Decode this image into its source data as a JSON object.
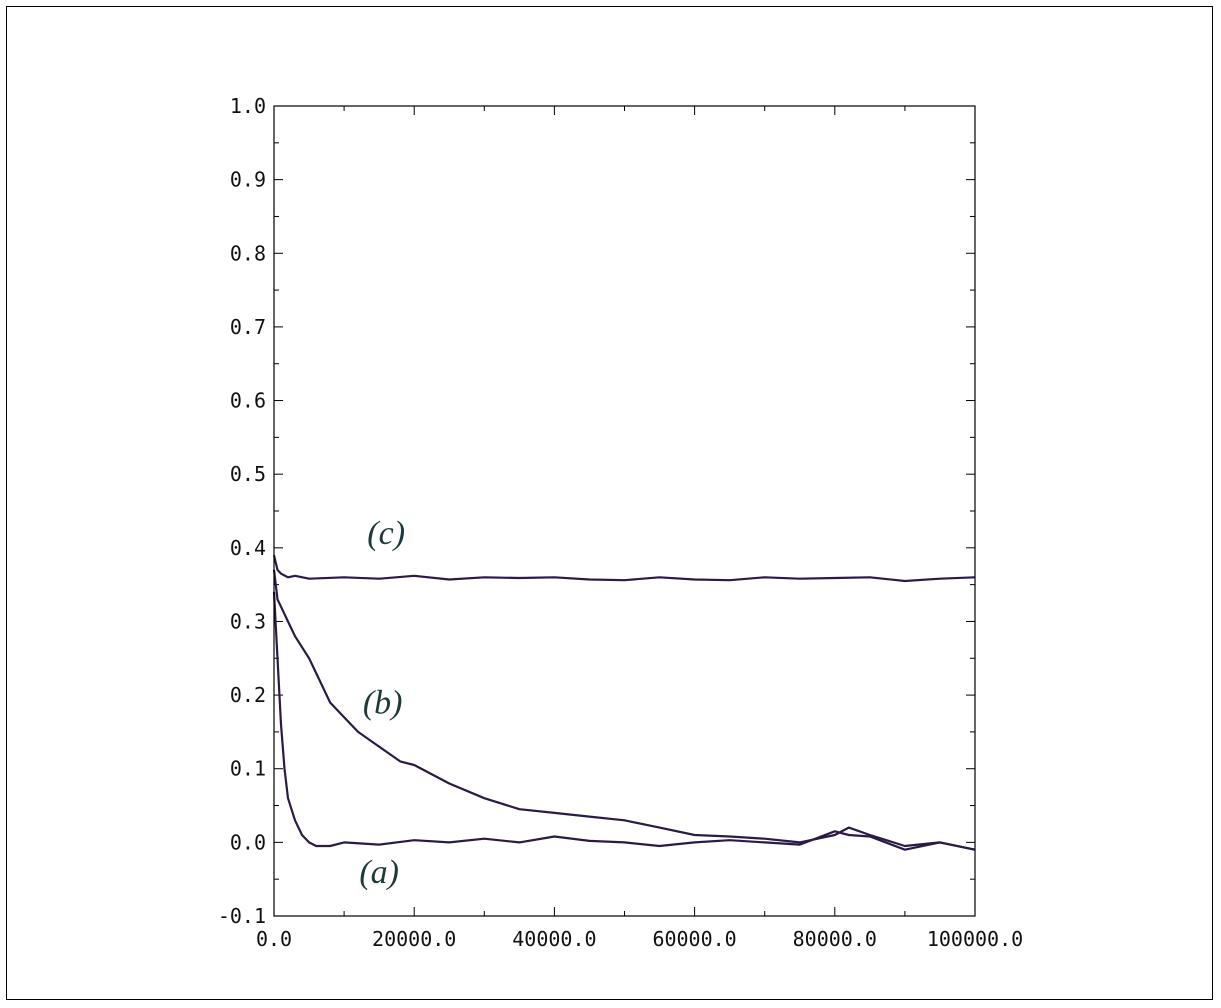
{
  "chart_data": {
    "type": "line",
    "title": "",
    "xlabel": "",
    "ylabel": "",
    "xlim": [
      0,
      100000
    ],
    "ylim": [
      -0.1,
      1.0
    ],
    "grid": false,
    "legend": "none",
    "x_ticks": [
      0,
      20000,
      40000,
      60000,
      80000,
      100000
    ],
    "x_tick_labels": [
      "0.0",
      "20000.0",
      "40000.0",
      "60000.0",
      "80000.0",
      "100000.0"
    ],
    "y_ticks": [
      -0.1,
      0.0,
      0.1,
      0.2,
      0.3,
      0.4,
      0.5,
      0.6,
      0.7,
      0.8,
      0.9,
      1.0
    ],
    "y_tick_labels": [
      "-0.1",
      "0.0",
      "0.1",
      "0.2",
      "0.3",
      "0.4",
      "0.5",
      "0.6",
      "0.7",
      "0.8",
      "0.9",
      "1.0"
    ],
    "line_color": "#2a1a45",
    "label_color": "#1d3a3a",
    "series": [
      {
        "name": "(a)",
        "x": [
          0,
          500,
          1000,
          1500,
          2000,
          3000,
          4000,
          5000,
          6000,
          8000,
          10000,
          15000,
          20000,
          25000,
          30000,
          35000,
          40000,
          45000,
          50000,
          55000,
          60000,
          65000,
          70000,
          75000,
          80000,
          82000,
          85000,
          90000,
          95000,
          100000
        ],
        "y": [
          0.34,
          0.25,
          0.16,
          0.1,
          0.06,
          0.03,
          0.01,
          0.0,
          -0.005,
          -0.005,
          0.0,
          -0.003,
          0.003,
          0.0,
          0.005,
          0.0,
          0.008,
          0.002,
          0.0,
          -0.005,
          0.0,
          0.003,
          0.0,
          -0.003,
          0.015,
          0.01,
          0.008,
          -0.01,
          0.0,
          -0.01
        ]
      },
      {
        "name": "(b)",
        "x": [
          0,
          500,
          1000,
          2000,
          3000,
          5000,
          6000,
          7000,
          8000,
          10000,
          12000,
          15000,
          18000,
          20000,
          25000,
          30000,
          35000,
          40000,
          45000,
          50000,
          55000,
          60000,
          65000,
          70000,
          75000,
          80000,
          82000,
          85000,
          90000,
          95000,
          100000
        ],
        "y": [
          0.37,
          0.33,
          0.32,
          0.3,
          0.28,
          0.25,
          0.23,
          0.21,
          0.19,
          0.17,
          0.15,
          0.13,
          0.11,
          0.105,
          0.08,
          0.06,
          0.045,
          0.04,
          0.035,
          0.03,
          0.02,
          0.01,
          0.008,
          0.005,
          0.0,
          0.01,
          0.02,
          0.01,
          -0.005,
          0.0,
          -0.01
        ]
      },
      {
        "name": "(c)",
        "x": [
          0,
          500,
          1000,
          2000,
          3000,
          5000,
          10000,
          15000,
          20000,
          25000,
          30000,
          35000,
          40000,
          45000,
          50000,
          55000,
          60000,
          65000,
          70000,
          75000,
          80000,
          85000,
          90000,
          95000,
          100000
        ],
        "y": [
          0.39,
          0.37,
          0.365,
          0.36,
          0.362,
          0.358,
          0.36,
          0.358,
          0.362,
          0.357,
          0.36,
          0.359,
          0.36,
          0.357,
          0.356,
          0.36,
          0.357,
          0.356,
          0.36,
          0.358,
          0.359,
          0.36,
          0.355,
          0.358,
          0.36
        ]
      }
    ],
    "series_labels": [
      {
        "text": "(a)",
        "x": 15000,
        "y": -0.055
      },
      {
        "text": "(b)",
        "x": 15500,
        "y": 0.175
      },
      {
        "text": "(c)",
        "x": 16000,
        "y": 0.405
      }
    ]
  }
}
